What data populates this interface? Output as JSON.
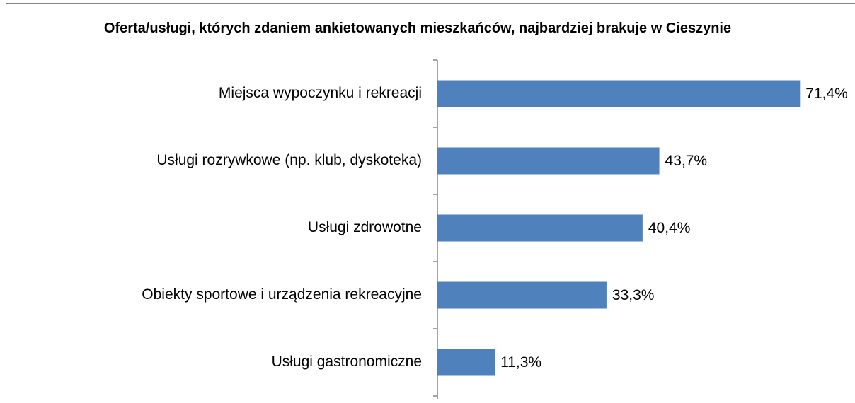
{
  "chart_data": {
    "type": "bar",
    "orientation": "horizontal",
    "title": "Oferta/usługi, których zdaniem ankietowanych mieszkańców, najbardziej brakuje w Cieszynie",
    "categories": [
      "Miejsca wypoczynku i rekreacji",
      "Usługi rozrywkowe (np. klub, dyskoteka)",
      "Usługi zdrowotne",
      "Obiekty sportowe i urządzenia rekreacyjne",
      "Usługi gastronomiczne"
    ],
    "values": [
      71.4,
      43.7,
      40.4,
      33.3,
      11.3
    ],
    "value_labels": [
      "71,4%",
      "43,7%",
      "40,4%",
      "33,3%",
      "11,3%"
    ],
    "color": "#4f81bd",
    "xlim": [
      0,
      80
    ]
  }
}
